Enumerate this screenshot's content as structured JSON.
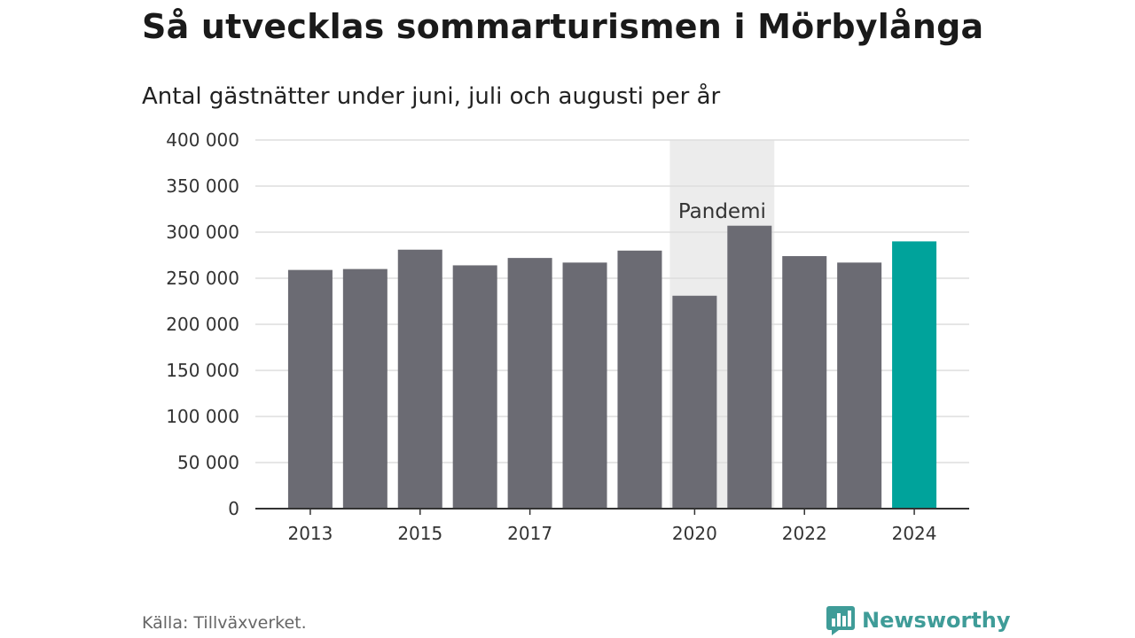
{
  "header": {
    "title": "Så utvecklas sommarturismen i Mörbylånga",
    "subtitle": "Antal gästnätter under juni, juli och augusti per år"
  },
  "footer": {
    "source": "Källa: Tillväxverket.",
    "brand": "Newsworthy"
  },
  "colors": {
    "bar": "#6b6b73",
    "highlight": "#00a39b",
    "pandemic_band": "#ececec",
    "grid": "#dddddd",
    "axis": "#333333",
    "brand": "#3f9c98"
  },
  "chart_data": {
    "type": "bar",
    "categories": [
      "2013",
      "2014",
      "2015",
      "2016",
      "2017",
      "2018",
      "2019",
      "2020",
      "2021",
      "2022",
      "2023",
      "2024"
    ],
    "values": [
      259000,
      260000,
      281000,
      264000,
      272000,
      267000,
      280000,
      231000,
      307000,
      274000,
      267000,
      290000
    ],
    "highlight_category": "2024",
    "x_tick_labels": [
      "2013",
      "2015",
      "2017",
      "2020",
      "2022",
      "2024"
    ],
    "y_ticks": [
      {
        "value": 0,
        "label": "0"
      },
      {
        "value": 50000,
        "label": "50 000"
      },
      {
        "value": 100000,
        "label": "100 000"
      },
      {
        "value": 150000,
        "label": "150 000"
      },
      {
        "value": 200000,
        "label": "200 000"
      },
      {
        "value": 250000,
        "label": "250 000"
      },
      {
        "value": 300000,
        "label": "300 000"
      },
      {
        "value": 350000,
        "label": "350 000"
      },
      {
        "value": 400000,
        "label": "400 000"
      }
    ],
    "ylim": [
      0,
      400000
    ],
    "grid": true,
    "annotation": {
      "label": "Pandemi",
      "from": "2020",
      "to": "2021"
    },
    "xlabel": "",
    "ylabel": ""
  }
}
